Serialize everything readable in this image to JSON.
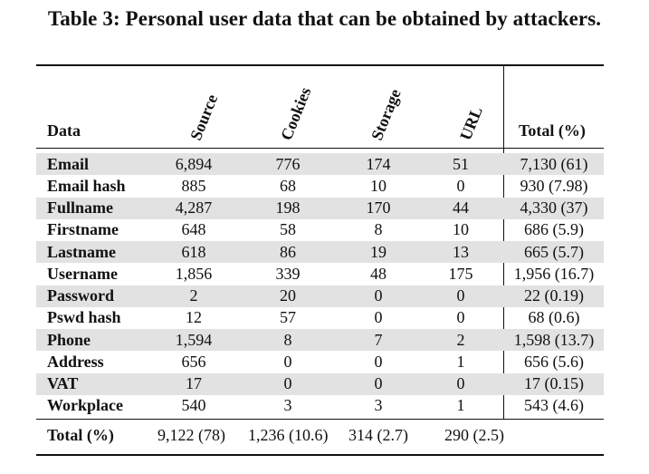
{
  "caption": "Table 3: Personal user data that can be obtained by attackers.",
  "headers": {
    "data": "Data",
    "source": "Source",
    "cookies": "Cookies",
    "storage": "Storage",
    "url": "URL",
    "total": "Total (%)"
  },
  "rows": [
    {
      "name": "Email",
      "source": "6,894",
      "cookies": "776",
      "storage": "174",
      "url": "51",
      "total": "7,130 (61)"
    },
    {
      "name": "Email hash",
      "source": "885",
      "cookies": "68",
      "storage": "10",
      "url": "0",
      "total": "930 (7.98)"
    },
    {
      "name": "Fullname",
      "source": "4,287",
      "cookies": "198",
      "storage": "170",
      "url": "44",
      "total": "4,330 (37)"
    },
    {
      "name": "Firstname",
      "source": "648",
      "cookies": "58",
      "storage": "8",
      "url": "10",
      "total": "686 (5.9)"
    },
    {
      "name": "Lastname",
      "source": "618",
      "cookies": "86",
      "storage": "19",
      "url": "13",
      "total": "665 (5.7)"
    },
    {
      "name": "Username",
      "source": "1,856",
      "cookies": "339",
      "storage": "48",
      "url": "175",
      "total": "1,956 (16.7)"
    },
    {
      "name": "Password",
      "source": "2",
      "cookies": "20",
      "storage": "0",
      "url": "0",
      "total": "22 (0.19)"
    },
    {
      "name": "Pswd hash",
      "source": "12",
      "cookies": "57",
      "storage": "0",
      "url": "0",
      "total": "68 (0.6)"
    },
    {
      "name": "Phone",
      "source": "1,594",
      "cookies": "8",
      "storage": "7",
      "url": "2",
      "total": "1,598 (13.7)"
    },
    {
      "name": "Address",
      "source": "656",
      "cookies": "0",
      "storage": "0",
      "url": "1",
      "total": "656 (5.6)"
    },
    {
      "name": "VAT",
      "source": "17",
      "cookies": "0",
      "storage": "0",
      "url": "0",
      "total": "17 (0.15)"
    },
    {
      "name": "Workplace",
      "source": "540",
      "cookies": "3",
      "storage": "3",
      "url": "1",
      "total": "543 (4.6)"
    }
  ],
  "totals": {
    "label": "Total (%)",
    "source": "9,122 (78)",
    "cookies": "1,236 (10.6)",
    "storage": "314 (2.7)",
    "url": "290 (2.5)"
  },
  "style": {
    "shade_color": "#e2e2e2",
    "rule_color": "#111111"
  }
}
